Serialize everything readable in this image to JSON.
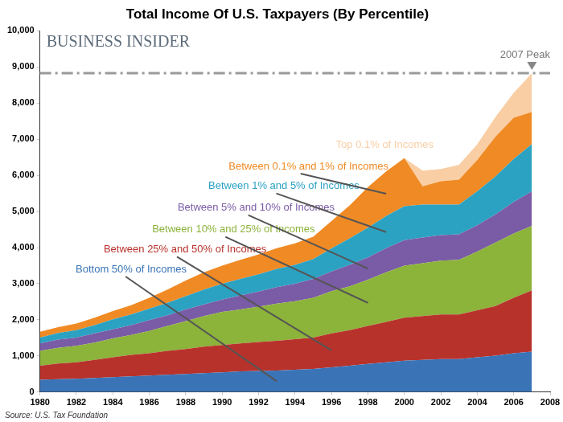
{
  "chart_data": {
    "type": "area",
    "title": "Total Income Of U.S. Taxpayers (By Percentile)",
    "brand": "BUSINESS INSIDER",
    "source": "Source: U.S. Tax Foundation",
    "stacked": true,
    "grid": false,
    "x": [
      1980,
      1981,
      1982,
      1983,
      1984,
      1985,
      1986,
      1987,
      1988,
      1989,
      1990,
      1991,
      1992,
      1993,
      1994,
      1995,
      1996,
      1997,
      1998,
      1999,
      2000,
      2001,
      2002,
      2003,
      2004,
      2005,
      2006,
      2007
    ],
    "xlim": [
      1980,
      2008
    ],
    "xticks": [
      1980,
      1982,
      1984,
      1986,
      1988,
      1990,
      1992,
      1994,
      1996,
      1998,
      2000,
      2002,
      2004,
      2006,
      2008
    ],
    "ylim": [
      0,
      10000
    ],
    "yticks": [
      0,
      {
        "value": 1000,
        "label": "1,000"
      },
      {
        "value": 2000,
        "label": "2,000"
      },
      {
        "value": 3000,
        "label": "3,000"
      },
      {
        "value": 4000,
        "label": "4,000"
      },
      {
        "value": 5000,
        "label": "5,000"
      },
      {
        "value": 6000,
        "label": "6,000"
      },
      {
        "value": 7000,
        "label": "7,000"
      },
      {
        "value": 8000,
        "label": "8,000"
      },
      {
        "value": 9000,
        "label": "9,000"
      },
      {
        "value": 10000,
        "label": "10,000"
      }
    ],
    "series": [
      {
        "name": "Bottom 50% of Incomes",
        "color": "#3a74b7",
        "values": [
          343,
          355,
          366,
          389,
          412,
          435,
          458,
          480,
          503,
          526,
          549,
          572,
          583,
          595,
          618,
          641,
          686,
          732,
          778,
          824,
          869,
          892,
          915,
          915,
          961,
          1007,
          1075,
          1121
        ]
      },
      {
        "name": "Between 25% and 50% of Incomes",
        "color": "#b8322c",
        "values": [
          389,
          435,
          458,
          503,
          549,
          595,
          618,
          664,
          686,
          732,
          755,
          778,
          801,
          824,
          847,
          869,
          938,
          984,
          1052,
          1121,
          1190,
          1213,
          1236,
          1236,
          1304,
          1373,
          1533,
          1693
        ]
      },
      {
        "name": "Between 10% and 25% of Incomes",
        "color": "#8cb33a",
        "values": [
          412,
          435,
          458,
          480,
          526,
          549,
          618,
          686,
          778,
          847,
          915,
          938,
          984,
          1030,
          1052,
          1098,
          1167,
          1213,
          1281,
          1373,
          1441,
          1464,
          1487,
          1510,
          1624,
          1762,
          1785,
          1785
        ]
      },
      {
        "name": "Between 5% and 10% of Incomes",
        "color": "#7a5ba6",
        "values": [
          206,
          229,
          229,
          252,
          252,
          275,
          297,
          297,
          320,
          320,
          343,
          389,
          412,
          458,
          480,
          526,
          549,
          595,
          618,
          664,
          709,
          709,
          709,
          709,
          732,
          778,
          869,
          961
        ]
      },
      {
        "name": "Between 1% and 5% of Incomes",
        "color": "#2ca2c3",
        "values": [
          160,
          183,
          206,
          229,
          275,
          297,
          320,
          343,
          366,
          412,
          435,
          458,
          480,
          503,
          526,
          549,
          641,
          732,
          824,
          892,
          938,
          915,
          847,
          824,
          938,
          1052,
          1190,
          1304
        ]
      },
      {
        "name": "Between 0.1% and 1% of Incomes",
        "color": "#f08a24",
        "values": [
          160,
          160,
          183,
          206,
          229,
          252,
          297,
          366,
          435,
          480,
          503,
          526,
          549,
          572,
          595,
          618,
          755,
          915,
          1121,
          1236,
          1327,
          503,
          641,
          686,
          869,
          1098,
          1144,
          892
        ]
      },
      {
        "name": "Top 0.1% of Incomes",
        "color": "#f9cea4",
        "values": [
          0,
          0,
          0,
          0,
          0,
          0,
          0,
          0,
          0,
          0,
          0,
          0,
          0,
          0,
          0,
          0,
          0,
          0,
          0,
          0,
          0,
          435,
          343,
          412,
          435,
          549,
          686,
          1075
        ]
      }
    ],
    "annotations": [
      {
        "text": "2007 Peak",
        "x": 2007,
        "y": 8831
      }
    ]
  }
}
